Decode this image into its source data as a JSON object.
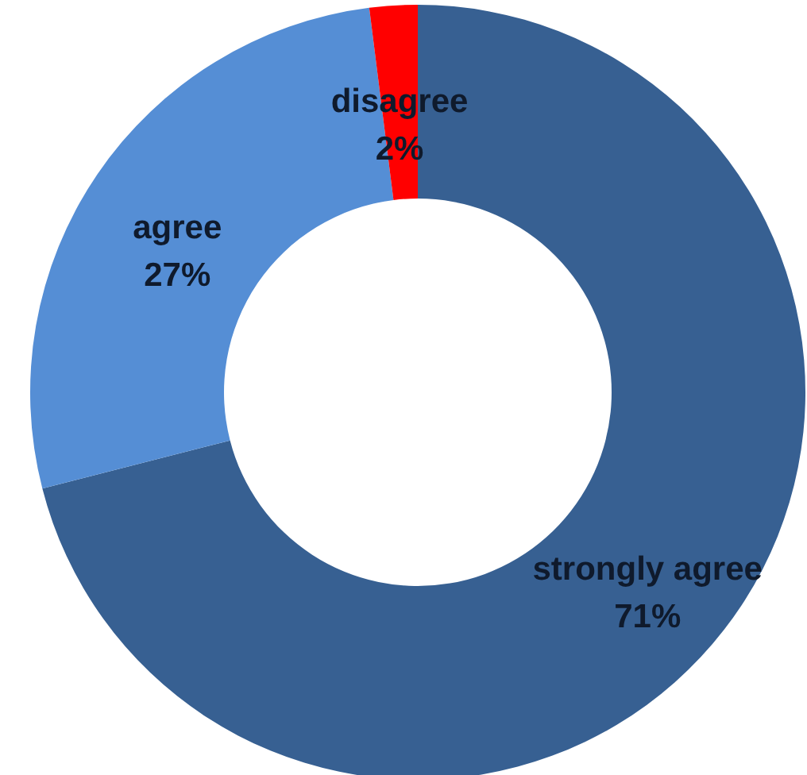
{
  "chart_data": {
    "type": "donut",
    "categories": [
      "strongly agree",
      "agree",
      "disagree"
    ],
    "values": [
      71,
      27,
      2
    ],
    "colors": [
      "#376092",
      "#558ed5",
      "#ff0000"
    ],
    "value_labels": [
      "71%",
      "27%",
      "2%"
    ]
  }
}
